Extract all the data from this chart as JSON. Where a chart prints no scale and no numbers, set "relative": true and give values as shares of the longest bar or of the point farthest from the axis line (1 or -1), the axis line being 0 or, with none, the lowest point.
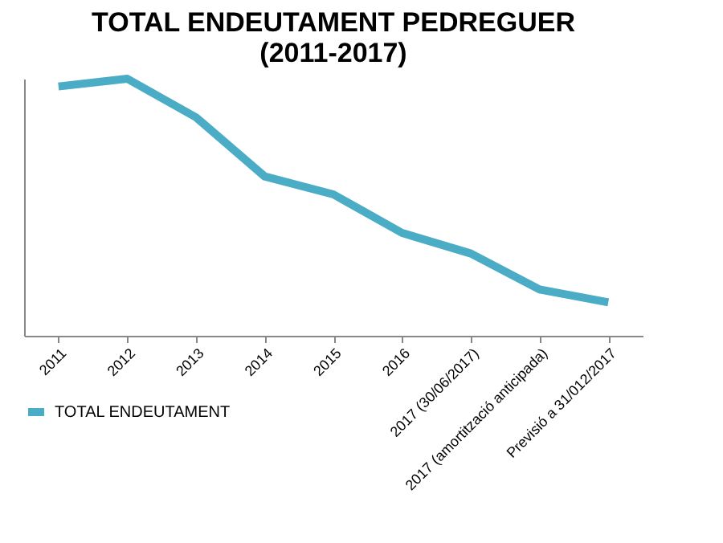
{
  "chart_data": {
    "type": "line",
    "title": [
      "TOTAL ENDEUTAMENT PEDREGUER",
      "(2011-2017)"
    ],
    "categories": [
      "2011",
      "2012",
      "2013",
      "2014",
      "2015",
      "2016",
      "2017 (30/06/2017)",
      "2017 (amortització anticipada)",
      "Previsió a 31/012/2017"
    ],
    "relative": true,
    "series": [
      {
        "name": "TOTAL ENDEUTAMENT",
        "color": "#4bacc6",
        "values": [
          0.97,
          1,
          0.85,
          0.62,
          0.55,
          0.4,
          0.32,
          0.18,
          0.13
        ]
      }
    ],
    "legend": "bottom left",
    "marker": "none",
    "line_style": "solid"
  }
}
